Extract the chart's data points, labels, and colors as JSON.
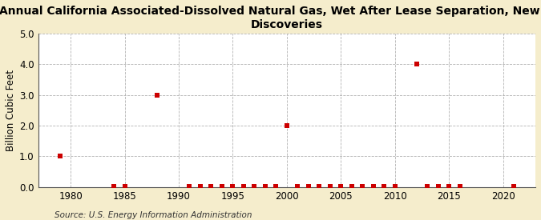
{
  "title_line1": "Annual California Associated-Dissolved Natural Gas, Wet After Lease Separation, New Field",
  "title_line2": "Discoveries",
  "ylabel": "Billion Cubic Feet",
  "source": "Source: U.S. Energy Information Administration",
  "background_color": "#f5edcc",
  "plot_background_color": "#ffffff",
  "xlim": [
    1977,
    2023
  ],
  "ylim": [
    0.0,
    5.0
  ],
  "xticks": [
    1980,
    1985,
    1990,
    1995,
    2000,
    2005,
    2010,
    2015,
    2020
  ],
  "yticks": [
    0.0,
    1.0,
    2.0,
    3.0,
    4.0,
    5.0
  ],
  "data_points": [
    [
      1979,
      1.0
    ],
    [
      1984,
      0.02
    ],
    [
      1985,
      0.01
    ],
    [
      1988,
      3.0
    ],
    [
      1991,
      0.02
    ],
    [
      1992,
      0.02
    ],
    [
      1993,
      0.02
    ],
    [
      1994,
      0.02
    ],
    [
      1995,
      0.02
    ],
    [
      1996,
      0.02
    ],
    [
      1997,
      0.02
    ],
    [
      1998,
      0.02
    ],
    [
      1999,
      0.02
    ],
    [
      2000,
      2.0
    ],
    [
      2001,
      0.02
    ],
    [
      2002,
      0.02
    ],
    [
      2003,
      0.02
    ],
    [
      2004,
      0.02
    ],
    [
      2005,
      0.02
    ],
    [
      2006,
      0.02
    ],
    [
      2007,
      0.02
    ],
    [
      2008,
      0.02
    ],
    [
      2009,
      0.02
    ],
    [
      2010,
      0.02
    ],
    [
      2012,
      4.0
    ],
    [
      2013,
      0.02
    ],
    [
      2014,
      0.02
    ],
    [
      2015,
      0.02
    ],
    [
      2016,
      0.01
    ],
    [
      2021,
      0.01
    ]
  ],
  "marker_color": "#cc0000",
  "marker_size": 5,
  "grid_color": "#aaaaaa",
  "grid_linestyle": "--",
  "title_fontsize": 10,
  "label_fontsize": 8.5,
  "tick_fontsize": 8.5,
  "source_fontsize": 7.5
}
